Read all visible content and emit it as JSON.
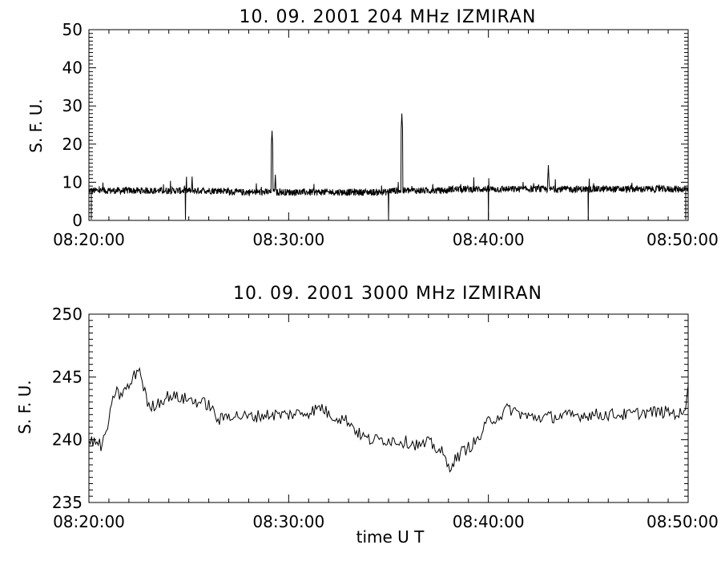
{
  "chart_data": [
    {
      "type": "line",
      "title": "10.  09.  2001    204 MHz    IZMIRAN",
      "ylabel": "S. F. U.",
      "xlabel": "",
      "ylim": [
        0,
        50
      ],
      "yticks": [
        "0",
        "10",
        "20",
        "30",
        "40",
        "50"
      ],
      "xlim": [
        "08:20:00",
        "08:50:00"
      ],
      "xticks": [
        "08:20:00",
        "08:30:00",
        "08:40:00",
        "08:50:00"
      ],
      "series": [
        {
          "baseline": 7.8,
          "noise": 0.9,
          "x": [
            "08:20:00",
            "08:24:50",
            "08:25:10",
            "08:27:00",
            "08:29:10",
            "08:29:20",
            "08:33:00",
            "08:35:00",
            "08:35:40",
            "08:35:50",
            "08:38:00",
            "08:40:00",
            "08:43:00",
            "08:43:10",
            "08:45:00",
            "08:47:00",
            "08:50:00"
          ],
          "values": [
            7.8,
            7.6,
            11.5,
            7.5,
            23.5,
            12.0,
            7.6,
            7.4,
            28.0,
            10.0,
            7.6,
            8.2,
            14.5,
            8.4,
            8.5,
            8.3,
            8.2
          ]
        }
      ]
    },
    {
      "type": "line",
      "title": "10.  09.  2001    3000 MHz    IZMIRAN",
      "ylabel": "S. F. U.",
      "xlabel": "time   U T",
      "ylim": [
        235,
        250
      ],
      "yticks": [
        "235",
        "240",
        "245",
        "250"
      ],
      "xlim": [
        "08:20:00",
        "08:50:00"
      ],
      "xticks": [
        "08:20:00",
        "08:30:00",
        "08:40:00",
        "08:50:00"
      ],
      "series": [
        {
          "x": [
            "08:20:00",
            "08:20:40",
            "08:21:00",
            "08:21:20",
            "08:21:30",
            "08:22:00",
            "08:22:30",
            "08:23:00",
            "08:24:00",
            "08:25:00",
            "08:26:00",
            "08:26:30",
            "08:27:00",
            "08:28:00",
            "08:29:00",
            "08:30:00",
            "08:31:00",
            "08:31:40",
            "08:32:00",
            "08:33:00",
            "08:33:30",
            "08:34:00",
            "08:35:00",
            "08:36:00",
            "08:36:40",
            "08:37:00",
            "08:37:40",
            "08:38:00",
            "08:38:40",
            "08:39:30",
            "08:40:00",
            "08:40:40",
            "08:41:00",
            "08:42:00",
            "08:43:00",
            "08:45:00",
            "08:47:00",
            "08:48:00",
            "08:49:00",
            "08:49:50",
            "08:50:00"
          ],
          "values": [
            240.0,
            239.5,
            241.5,
            244.0,
            243.5,
            244.2,
            245.8,
            242.5,
            243.5,
            243.2,
            242.8,
            241.5,
            242.0,
            241.8,
            242.0,
            242.0,
            242.2,
            242.6,
            242.0,
            241.5,
            240.5,
            240.0,
            240.0,
            239.8,
            239.5,
            239.8,
            239.0,
            237.8,
            239.0,
            240.0,
            241.5,
            242.0,
            242.5,
            241.8,
            241.8,
            242.0,
            242.0,
            242.2,
            242.2,
            242.0,
            244.8
          ]
        }
      ]
    }
  ]
}
